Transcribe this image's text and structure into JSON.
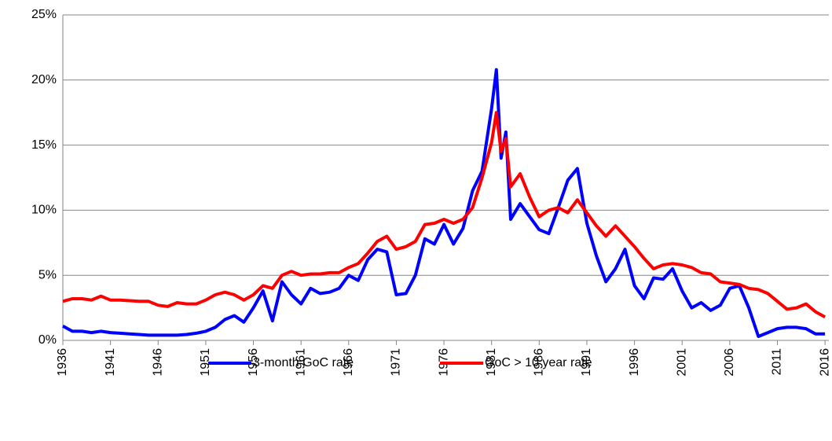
{
  "chart_data": {
    "type": "line",
    "x": [
      1936,
      1937,
      1938,
      1939,
      1940,
      1941,
      1942,
      1943,
      1944,
      1945,
      1946,
      1947,
      1948,
      1949,
      1950,
      1951,
      1952,
      1953,
      1954,
      1955,
      1956,
      1957,
      1958,
      1959,
      1960,
      1961,
      1962,
      1963,
      1964,
      1965,
      1966,
      1967,
      1968,
      1969,
      1970,
      1971,
      1972,
      1973,
      1974,
      1975,
      1976,
      1977,
      1978,
      1979,
      1980,
      1981,
      1981.5,
      1982,
      1982.5,
      1983,
      1984,
      1985,
      1986,
      1987,
      1988,
      1989,
      1990,
      1991,
      1992,
      1993,
      1994,
      1995,
      1996,
      1997,
      1998,
      1999,
      2000,
      2001,
      2002,
      2003,
      2004,
      2005,
      2006,
      2007,
      2008,
      2009,
      2010,
      2011,
      2012,
      2013,
      2014,
      2015,
      2016
    ],
    "series": [
      {
        "name": "3-month GoC rate",
        "color": "#0000ff",
        "values": [
          1.1,
          0.7,
          0.7,
          0.6,
          0.7,
          0.6,
          0.55,
          0.5,
          0.45,
          0.4,
          0.4,
          0.4,
          0.4,
          0.45,
          0.55,
          0.7,
          1.0,
          1.6,
          1.9,
          1.4,
          2.5,
          3.8,
          1.5,
          4.5,
          3.5,
          2.8,
          4.0,
          3.6,
          3.7,
          4.0,
          5.0,
          4.6,
          6.2,
          7.0,
          6.8,
          3.5,
          3.6,
          5.0,
          7.8,
          7.4,
          8.9,
          7.4,
          8.6,
          11.5,
          13.0,
          17.8,
          20.8,
          14.0,
          16.0,
          9.3,
          10.5,
          9.5,
          8.5,
          8.2,
          10.2,
          12.3,
          13.2,
          9.0,
          6.5,
          4.5,
          5.5,
          7.0,
          4.2,
          3.2,
          4.8,
          4.7,
          5.5,
          3.8,
          2.5,
          2.9,
          2.3,
          2.7,
          4.0,
          4.2,
          2.5,
          0.3,
          0.6,
          0.9,
          1.0,
          1.0,
          0.9,
          0.5,
          0.5
        ]
      },
      {
        "name": "GoC > 10 year rate",
        "color": "#ff0000",
        "values": [
          3.0,
          3.2,
          3.2,
          3.1,
          3.4,
          3.1,
          3.1,
          3.05,
          3.0,
          3.0,
          2.7,
          2.6,
          2.9,
          2.8,
          2.8,
          3.1,
          3.5,
          3.7,
          3.5,
          3.1,
          3.5,
          4.2,
          4.0,
          5.0,
          5.3,
          5.0,
          5.1,
          5.1,
          5.2,
          5.2,
          5.6,
          5.9,
          6.7,
          7.6,
          8.0,
          7.0,
          7.2,
          7.6,
          8.9,
          9.0,
          9.3,
          9.0,
          9.3,
          10.2,
          12.5,
          15.2,
          17.5,
          14.5,
          15.5,
          11.8,
          12.8,
          11.0,
          9.5,
          10.0,
          10.2,
          9.8,
          10.8,
          9.8,
          8.8,
          8.0,
          8.8,
          8.0,
          7.2,
          6.3,
          5.5,
          5.8,
          5.9,
          5.8,
          5.6,
          5.2,
          5.1,
          4.5,
          4.4,
          4.3,
          4.0,
          3.9,
          3.6,
          3.0,
          2.4,
          2.5,
          2.8,
          2.2,
          1.8
        ]
      }
    ],
    "xlim": [
      1936,
      2016.4
    ],
    "xticks": [
      1936,
      1941,
      1946,
      1951,
      1956,
      1961,
      1966,
      1971,
      1976,
      1981,
      1986,
      1991,
      1996,
      2001,
      2006,
      2011,
      2016
    ],
    "ylim": [
      0,
      25
    ],
    "yticks": [
      {
        "value": 0,
        "label": "0%"
      },
      {
        "value": 5,
        "label": "5%"
      },
      {
        "value": 10,
        "label": "10%"
      },
      {
        "value": 15,
        "label": "15%"
      },
      {
        "value": 20,
        "label": "20%"
      },
      {
        "value": 25,
        "label": "25%"
      }
    ],
    "grid": true,
    "legend": "bottom"
  }
}
